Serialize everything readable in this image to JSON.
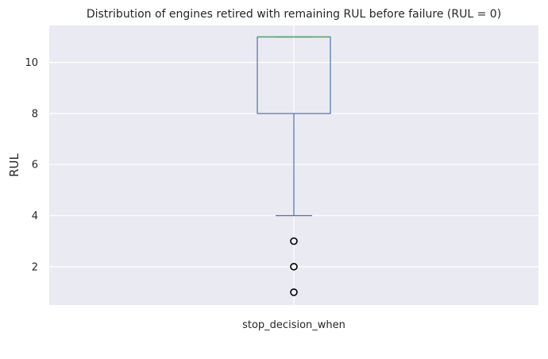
{
  "chart_data": {
    "type": "box",
    "title": "Distribution of engines retired with remaining RUL before failure (RUL = 0)",
    "xlabel": "",
    "ylabel": "RUL",
    "categories": [
      "stop_decision_when"
    ],
    "ylim": [
      0.5,
      11.45
    ],
    "yticks": [
      2,
      4,
      6,
      8,
      10
    ],
    "grid": true,
    "boxes": [
      {
        "category": "stop_decision_when",
        "whisker_low": 4,
        "q1": 8,
        "median": 11,
        "q3": 11,
        "whisker_high": 11,
        "outliers": [
          3,
          2,
          1
        ]
      }
    ],
    "colors": {
      "background": "#eaeaf2",
      "grid": "#ffffff",
      "box": "#4c72b0",
      "median": "#55a868",
      "outlier": "#000000"
    }
  }
}
